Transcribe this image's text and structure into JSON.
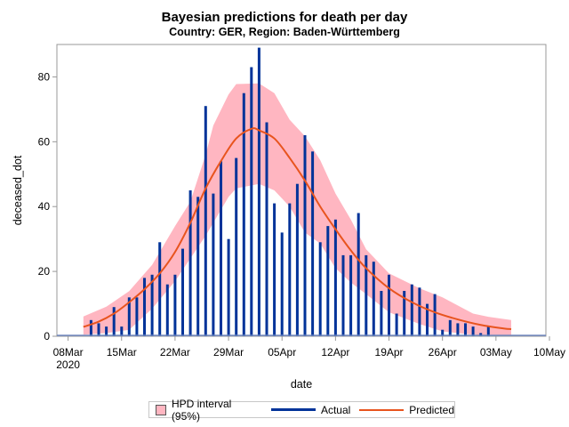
{
  "chart_data": {
    "type": "bar+line+band",
    "title": "Bayesian predictions for death per day",
    "subtitle": "Country: GER, Region: Baden-Württemberg",
    "xlabel": "date",
    "ylabel": "deceased_dot",
    "xlim": [
      "2020-03-07",
      "2020-05-10"
    ],
    "ylim": [
      0,
      90
    ],
    "yticks": [
      0,
      20,
      40,
      60,
      80
    ],
    "xticks": [
      {
        "date": "2020-03-08",
        "label": "08Mar",
        "sublabel": "2020"
      },
      {
        "date": "2020-03-15",
        "label": "15Mar"
      },
      {
        "date": "2020-03-22",
        "label": "22Mar"
      },
      {
        "date": "2020-03-29",
        "label": "29Mar"
      },
      {
        "date": "2020-04-05",
        "label": "05Apr"
      },
      {
        "date": "2020-04-12",
        "label": "12Apr"
      },
      {
        "date": "2020-04-19",
        "label": "19Apr"
      },
      {
        "date": "2020-04-26",
        "label": "26Apr"
      },
      {
        "date": "2020-05-03",
        "label": "03May"
      },
      {
        "date": "2020-05-10",
        "label": "10May"
      }
    ],
    "grid": false,
    "legend_position": "bottom",
    "colors": {
      "band": "#FFB6C1",
      "actual": "#003399",
      "predicted": "#E8541E",
      "axis": "#999999"
    },
    "legend": [
      {
        "label": "HPD interval (95%)",
        "kind": "band"
      },
      {
        "label": "Actual",
        "kind": "actual"
      },
      {
        "label": "Predicted",
        "kind": "predicted"
      }
    ],
    "actual": {
      "start_date": "2020-03-11",
      "values": [
        5,
        4,
        3,
        9,
        3,
        12,
        12,
        18,
        19,
        29,
        16,
        19,
        27,
        45,
        43,
        71,
        44,
        54,
        30,
        55,
        75,
        83,
        89,
        66,
        41,
        32,
        41,
        47,
        62,
        57,
        29,
        34,
        36,
        25,
        25,
        38,
        25,
        23,
        14,
        19,
        7,
        14,
        16,
        15,
        10,
        13,
        2,
        5,
        4,
        4,
        3,
        1,
        3
      ]
    },
    "predicted": [
      [
        "2020-03-10",
        2.9
      ],
      [
        "2020-03-12",
        4.5
      ],
      [
        "2020-03-14",
        7
      ],
      [
        "2020-03-16",
        10.5
      ],
      [
        "2020-03-18",
        14.5
      ],
      [
        "2020-03-20",
        19.4
      ],
      [
        "2020-03-22",
        26
      ],
      [
        "2020-03-24",
        35
      ],
      [
        "2020-03-26",
        45.6
      ],
      [
        "2020-03-28",
        54
      ],
      [
        "2020-03-30",
        61
      ],
      [
        "2020-04-01",
        64
      ],
      [
        "2020-04-02",
        63.5
      ],
      [
        "2020-04-04",
        61
      ],
      [
        "2020-04-06",
        55
      ],
      [
        "2020-04-08",
        48
      ],
      [
        "2020-04-10",
        40
      ],
      [
        "2020-04-12",
        33
      ],
      [
        "2020-04-14",
        26.5
      ],
      [
        "2020-04-16",
        21
      ],
      [
        "2020-04-19",
        14.8
      ],
      [
        "2020-04-22",
        10.5
      ],
      [
        "2020-04-25",
        7.4
      ],
      [
        "2020-04-28",
        5.2
      ],
      [
        "2020-05-01",
        3.5
      ],
      [
        "2020-05-04",
        2.4
      ],
      [
        "2020-05-05",
        2.2
      ]
    ],
    "hpd_interval": [
      [
        "2020-03-10",
        0.5,
        6.1
      ],
      [
        "2020-03-13",
        1,
        9.1
      ],
      [
        "2020-03-16",
        2,
        13.9
      ],
      [
        "2020-03-19",
        8.5,
        22
      ],
      [
        "2020-03-22",
        17,
        34
      ],
      [
        "2020-03-24",
        24,
        41.5
      ],
      [
        "2020-03-26",
        31,
        56
      ],
      [
        "2020-03-27",
        35,
        65
      ],
      [
        "2020-03-29",
        43,
        74.6
      ],
      [
        "2020-03-30",
        45.6,
        77.8
      ],
      [
        "2020-04-02",
        47,
        78
      ],
      [
        "2020-04-04",
        45,
        75
      ],
      [
        "2020-04-06",
        40,
        66.8
      ],
      [
        "2020-04-08",
        32,
        61.7
      ],
      [
        "2020-04-10",
        28.6,
        54.3
      ],
      [
        "2020-04-12",
        21,
        44
      ],
      [
        "2020-04-14",
        16.6,
        36
      ],
      [
        "2020-04-16",
        13,
        26.8
      ],
      [
        "2020-04-19",
        7.4,
        19.4
      ],
      [
        "2020-04-23",
        3.8,
        14.8
      ],
      [
        "2020-04-26",
        1.5,
        12
      ],
      [
        "2020-04-30",
        0.5,
        7
      ],
      [
        "2020-05-02",
        0.3,
        6
      ],
      [
        "2020-05-05",
        0.2,
        5
      ]
    ]
  }
}
